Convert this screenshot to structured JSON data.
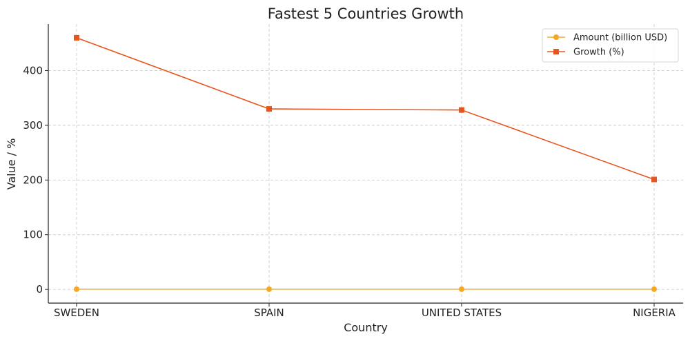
{
  "chart_data": {
    "type": "line",
    "title": "Fastest 5 Countries Growth",
    "xlabel": "Country",
    "ylabel": "Value / %",
    "categories": [
      "SWEDEN",
      "SPAIN",
      "UNITED STATES",
      "NIGERIA"
    ],
    "ylim": [
      -25,
      485
    ],
    "yticks": [
      0,
      100,
      200,
      300,
      400
    ],
    "grid": true,
    "legend_position": "top-right",
    "series": [
      {
        "name": "Amount (billion USD)",
        "values": [
          0.5,
          0.5,
          0.5,
          0.5
        ],
        "color": "#F5A623",
        "marker": "circle"
      },
      {
        "name": "Growth (%)",
        "values": [
          460,
          330,
          328,
          201
        ],
        "color": "#E8561F",
        "marker": "square"
      }
    ]
  }
}
